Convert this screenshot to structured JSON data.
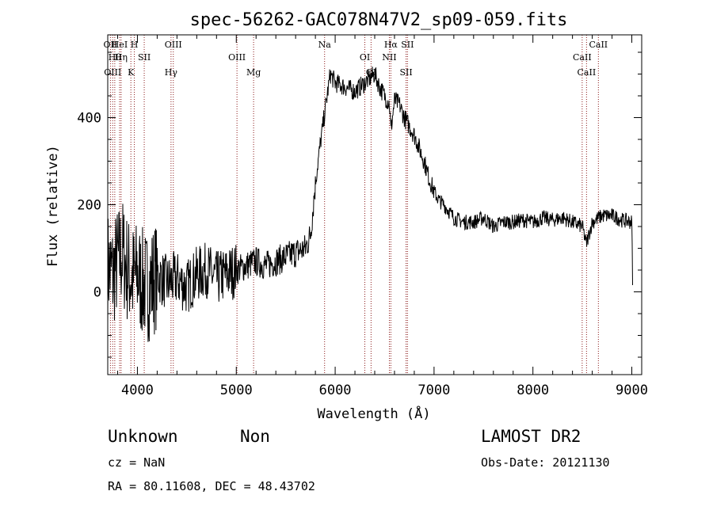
{
  "chart_data": {
    "type": "line",
    "title": "spec-56262-GAC078N47V2_sp09-059.fits",
    "xlabel": "Wavelength (Å)",
    "ylabel": "Flux (relative)",
    "xlim": [
      3700,
      9100
    ],
    "ylim": [
      -190,
      590
    ],
    "xticks": [
      4000,
      5000,
      6000,
      7000,
      8000,
      9000
    ],
    "yticks": [
      0,
      200,
      400
    ],
    "grid": false,
    "line_color": "#000000",
    "marker_color": "#8b1a1a",
    "spectrum": {
      "x": [
        3700,
        3750,
        3800,
        3850,
        3900,
        3950,
        4000,
        4050,
        4100,
        4200,
        4300,
        4400,
        4500,
        4600,
        4700,
        4800,
        4900,
        5000,
        5100,
        5200,
        5300,
        5400,
        5500,
        5600,
        5700,
        5750,
        5800,
        5850,
        5900,
        5950,
        6000,
        6100,
        6200,
        6300,
        6400,
        6450,
        6500,
        6550,
        6563,
        6600,
        6650,
        6700,
        6750,
        6800,
        6850,
        6900,
        6950,
        7000,
        7050,
        7100,
        7200,
        7300,
        7400,
        7500,
        7600,
        7700,
        7800,
        7900,
        8000,
        8100,
        8200,
        8300,
        8400,
        8500,
        8540,
        8600,
        8700,
        8800,
        8900,
        9000,
        9010
      ],
      "y": [
        60,
        40,
        70,
        90,
        50,
        30,
        40,
        20,
        10,
        40,
        20,
        30,
        10,
        40,
        50,
        30,
        40,
        50,
        60,
        70,
        60,
        70,
        80,
        90,
        100,
        130,
        250,
        340,
        420,
        500,
        480,
        470,
        460,
        480,
        500,
        470,
        450,
        430,
        370,
        440,
        430,
        400,
        380,
        360,
        330,
        300,
        260,
        230,
        210,
        200,
        170,
        160,
        160,
        170,
        150,
        160,
        160,
        165,
        160,
        170,
        165,
        170,
        160,
        150,
        110,
        160,
        175,
        175,
        165,
        160,
        0
      ]
    },
    "annotations": [
      {
        "label": "OII",
        "x": 3727
      },
      {
        "label": "Hθ",
        "x": 3771
      },
      {
        "label": "OIII",
        "x": 3750
      },
      {
        "label": "HeI",
        "x": 3820
      },
      {
        "label": "Hη",
        "x": 3835
      },
      {
        "label": "K",
        "x": 3934
      },
      {
        "label": "H",
        "x": 3969
      },
      {
        "label": "SII",
        "x": 4069
      },
      {
        "label": "Hγ",
        "x": 4340
      },
      {
        "label": "OIII",
        "x": 4363
      },
      {
        "label": "OIII",
        "x": 5007
      },
      {
        "label": "Mg",
        "x": 5175
      },
      {
        "label": "Na",
        "x": 5893
      },
      {
        "label": "OI",
        "x": 6300
      },
      {
        "label": "OI",
        "x": 6363
      },
      {
        "label": "Hα",
        "x": 6563
      },
      {
        "label": "NII",
        "x": 6548
      },
      {
        "label": "SII",
        "x": 6717
      },
      {
        "label": "SII",
        "x": 6731
      },
      {
        "label": "CaII",
        "x": 8498
      },
      {
        "label": "CaII",
        "x": 8542
      },
      {
        "label": "CaII",
        "x": 8662
      }
    ]
  },
  "info": {
    "class": "Unknown",
    "subclass": "Non",
    "cz": "cz = NaN",
    "radec": "RA =  80.11608, DEC =  48.43702",
    "survey": "LAMOST DR2",
    "obsdate": "Obs-Date: 20121130"
  }
}
